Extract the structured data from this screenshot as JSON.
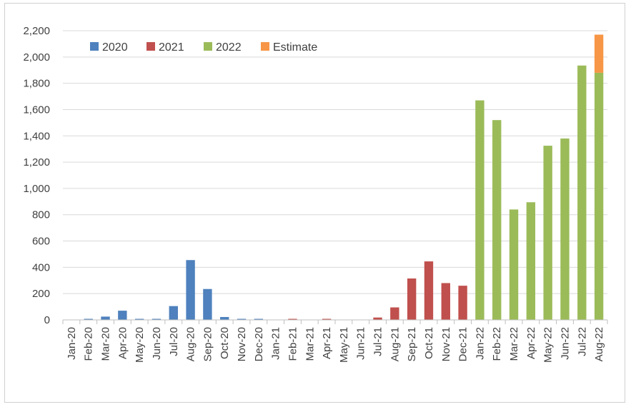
{
  "chart_data": {
    "type": "bar",
    "stacked": true,
    "title": "",
    "xlabel": "",
    "ylabel": "",
    "ylim": [
      0,
      2200
    ],
    "yticks": [
      0,
      200,
      400,
      600,
      800,
      1000,
      1200,
      1400,
      1600,
      1800,
      2000,
      2200
    ],
    "ytick_labels": [
      "0",
      "200",
      "400",
      "600",
      "800",
      "1,000",
      "1,200",
      "1,400",
      "1,600",
      "1,800",
      "2,000",
      "2,200"
    ],
    "grid": true,
    "legend_position": "top-left",
    "categories": [
      "Jan-20",
      "Feb-20",
      "Mar-20",
      "Apr-20",
      "May-20",
      "Jun-20",
      "Jul-20",
      "Aug-20",
      "Sep-20",
      "Oct-20",
      "Nov-20",
      "Dec-20",
      "Jan-21",
      "Feb-21",
      "Mar-21",
      "Apr-21",
      "May-21",
      "Jun-21",
      "Jul-21",
      "Aug-21",
      "Sep-21",
      "Oct-21",
      "Nov-21",
      "Dec-21",
      "Jan-22",
      "Feb-22",
      "Mar-22",
      "Apr-22",
      "May-22",
      "Jun-22",
      "Jul-22",
      "Aug-22"
    ],
    "series": [
      {
        "name": "2020",
        "color": "#4e81bd",
        "values": [
          0,
          8,
          25,
          70,
          8,
          8,
          105,
          455,
          235,
          22,
          8,
          8,
          0,
          0,
          0,
          0,
          0,
          0,
          0,
          0,
          0,
          0,
          0,
          0,
          0,
          0,
          0,
          0,
          0,
          0,
          0,
          0
        ]
      },
      {
        "name": "2021",
        "color": "#c0504d",
        "values": [
          0,
          0,
          0,
          0,
          0,
          0,
          0,
          0,
          0,
          0,
          0,
          0,
          0,
          8,
          0,
          8,
          0,
          0,
          18,
          95,
          315,
          445,
          280,
          260,
          0,
          0,
          0,
          0,
          0,
          0,
          0,
          0
        ]
      },
      {
        "name": "2022",
        "color": "#9bbb59",
        "values": [
          0,
          0,
          0,
          0,
          0,
          0,
          0,
          0,
          0,
          0,
          0,
          0,
          0,
          0,
          0,
          0,
          0,
          0,
          0,
          0,
          0,
          0,
          0,
          0,
          1670,
          1520,
          840,
          895,
          1325,
          1380,
          1935,
          1880
        ]
      },
      {
        "name": "Estimate",
        "color": "#f79646",
        "values": [
          0,
          0,
          0,
          0,
          0,
          0,
          0,
          0,
          0,
          0,
          0,
          0,
          0,
          0,
          0,
          0,
          0,
          0,
          0,
          0,
          0,
          0,
          0,
          0,
          0,
          0,
          0,
          0,
          0,
          0,
          0,
          290
        ]
      }
    ]
  }
}
